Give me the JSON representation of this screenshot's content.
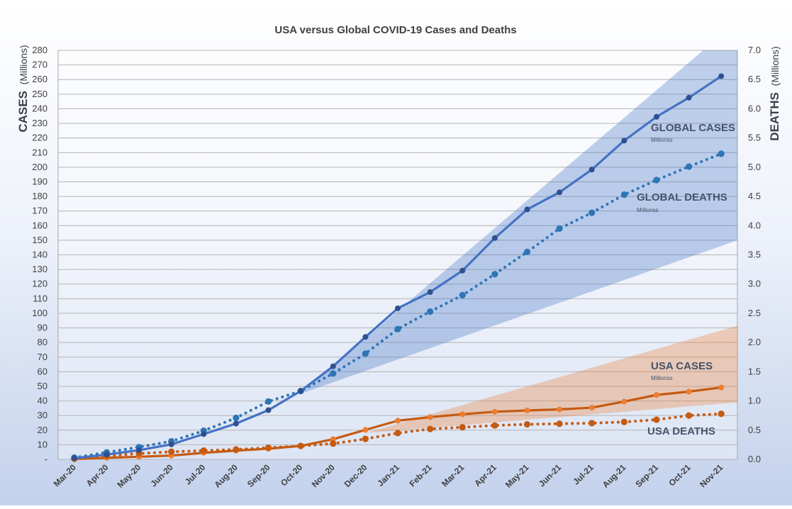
{
  "chart_data": {
    "type": "line",
    "title": "USA versus Global COVID-19 Cases and Deaths",
    "y_left": {
      "label_main": "CASES",
      "label_sub": "(Millions)",
      "range": [
        0,
        280
      ],
      "tick_labels": [
        "-",
        "10",
        "20",
        "30",
        "40",
        "50",
        "60",
        "70",
        "80",
        "90",
        "100",
        "110",
        "120",
        "130",
        "140",
        "150",
        "160",
        "170",
        "180",
        "190",
        "200",
        "210",
        "220",
        "230",
        "240",
        "250",
        "260",
        "270",
        "280"
      ]
    },
    "y_right": {
      "label_main": "DEATHS",
      "label_sub": "(Millions)",
      "range": [
        0,
        7
      ],
      "tick_labels": [
        "0.0",
        "0.5",
        "1.0",
        "1.5",
        "2.0",
        "2.5",
        "3.0",
        "3.5",
        "4.0",
        "4.5",
        "5.0",
        "5.5",
        "6.0",
        "6.5",
        "7.0"
      ]
    },
    "categories": [
      "Mar-20",
      "Apr-20",
      "May-20",
      "Jun-20",
      "Jul-20",
      "Aug-20",
      "Sep-20",
      "Oct-20",
      "Nov-20",
      "Dec-20",
      "Jan-21",
      "Feb-21",
      "Mar-21",
      "Apr-21",
      "May-21",
      "Jun-21",
      "Jul-21",
      "Aug-21",
      "Sep-21",
      "Oct-21",
      "Nov-21"
    ],
    "grid": "horizontal",
    "series": [
      {
        "name": "GLOBAL CASES",
        "axis": "left",
        "style": "solid",
        "color": "#4472c4",
        "marker_color": "#2f4f8f",
        "values": [
          0.8,
          3.3,
          6.3,
          10.3,
          17.3,
          24.5,
          33.7,
          46.8,
          63.7,
          83.8,
          103.4,
          114.5,
          129.2,
          151.5,
          171.1,
          182.8,
          198.4,
          218.2,
          234.5,
          247.6,
          262.3
        ]
      },
      {
        "name": "GLOBAL DEATHS",
        "axis": "right",
        "style": "dotted",
        "color": "#2e75b6",
        "values": [
          0.03,
          0.12,
          0.21,
          0.31,
          0.49,
          0.71,
          0.99,
          1.17,
          1.47,
          1.81,
          2.23,
          2.53,
          2.81,
          3.17,
          3.55,
          3.95,
          4.22,
          4.53,
          4.78,
          5.01,
          5.23
        ]
      },
      {
        "name": "USA CASES",
        "axis": "left",
        "style": "solid",
        "color": "#c55a11",
        "marker_color": "#ed7d31",
        "values": [
          0.2,
          1.1,
          1.8,
          2.6,
          4.5,
          6.0,
          7.3,
          9.2,
          13.8,
          20.2,
          26.5,
          28.9,
          30.9,
          32.6,
          33.5,
          34.2,
          35.4,
          39.6,
          44.1,
          46.4,
          49.2
        ]
      },
      {
        "name": "USA DEATHS",
        "axis": "right",
        "style": "dotted",
        "color": "#c55a11",
        "values": [
          0.01,
          0.06,
          0.1,
          0.13,
          0.15,
          0.17,
          0.2,
          0.23,
          0.27,
          0.35,
          0.45,
          0.52,
          0.55,
          0.58,
          0.6,
          0.61,
          0.62,
          0.64,
          0.68,
          0.75,
          0.78
        ]
      }
    ],
    "bands": [
      {
        "name": "global-cases-trend-band",
        "axis": "left",
        "color": "#4472c4",
        "opacity": 0.33,
        "start_index": 7,
        "lower": [
          45,
          150
        ],
        "upper": [
          45,
          300
        ]
      },
      {
        "name": "usa-cases-trend-band",
        "axis": "left",
        "color": "#ed7d31",
        "opacity": 0.32,
        "start_index": 9,
        "lower": [
          18,
          39
        ],
        "upper": [
          18,
          91.5
        ]
      }
    ],
    "annotations": [
      {
        "key": "global-cases",
        "main": "GLOBAL CASES",
        "sub": "Millionss"
      },
      {
        "key": "global-deaths",
        "main": "GLOBAL DEATHS",
        "sub": "Millionss"
      },
      {
        "key": "usa-cases",
        "main": "USA CASES",
        "sub": "Millionss"
      },
      {
        "key": "usa-deaths",
        "main": "USA DEATHS",
        "sub": ""
      }
    ]
  }
}
